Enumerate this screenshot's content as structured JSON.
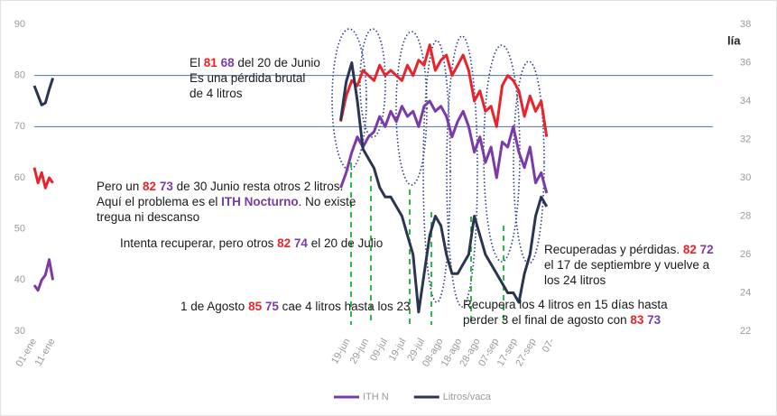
{
  "chart_data": {
    "type": "line",
    "corner_text": "lía",
    "x": [
      1,
      3,
      5,
      7,
      9,
      11,
      100,
      166,
      169,
      172,
      175,
      178,
      181,
      184,
      187,
      190,
      193,
      196,
      199,
      202,
      205,
      208,
      211,
      214,
      217,
      220,
      223,
      226,
      229,
      232,
      235,
      238,
      241,
      244,
      247,
      250,
      253,
      256,
      259,
      262,
      265,
      268,
      271,
      274,
      277
    ],
    "xlim": [
      1,
      280
    ],
    "xticks": [
      {
        "value": 1,
        "label": "01-ene"
      },
      {
        "value": 11,
        "label": "11-ene"
      },
      {
        "value": 170,
        "label": "19-jun"
      },
      {
        "value": 180,
        "label": "29-jun"
      },
      {
        "value": 190,
        "label": "09-jul"
      },
      {
        "value": 200,
        "label": "19-jul"
      },
      {
        "value": 210,
        "label": "29-jul"
      },
      {
        "value": 220,
        "label": "08-ago"
      },
      {
        "value": 230,
        "label": "18-ago"
      },
      {
        "value": 240,
        "label": "28-ago"
      },
      {
        "value": 250,
        "label": "07-sep"
      },
      {
        "value": 260,
        "label": "17-sep"
      },
      {
        "value": 270,
        "label": "27-sep"
      },
      {
        "value": 280,
        "label": "07-"
      }
    ],
    "ylim": [
      30,
      90
    ],
    "yticks": [
      30,
      40,
      50,
      60,
      70,
      80,
      90
    ],
    "y2lim": [
      22,
      38
    ],
    "y2ticks": [
      22,
      24,
      26,
      28,
      30,
      32,
      34,
      36,
      38
    ],
    "reference_lines": [
      80,
      70
    ],
    "reference_color": "#4a6fc4",
    "series": [
      {
        "color": "#e8242a",
        "values": [
          62,
          59,
          61,
          58,
          60,
          59,
          null,
          71,
          76,
          79,
          78,
          81,
          80,
          79,
          82,
          80,
          81,
          80,
          79,
          82,
          80,
          83,
          82,
          86,
          81,
          83,
          84,
          80,
          82,
          84,
          81,
          75,
          77,
          73,
          74,
          70,
          78,
          80,
          79,
          77,
          72,
          76,
          73,
          75,
          68
        ]
      },
      {
        "name": "ITH N",
        "color": "#7a3ba8",
        "values": [
          39,
          38,
          40,
          41,
          44,
          40,
          null,
          58,
          61,
          65,
          68,
          66,
          68,
          69,
          72,
          70,
          73,
          71,
          74,
          72,
          73,
          70,
          74,
          75,
          73,
          74,
          72,
          68,
          71,
          73,
          70,
          65,
          68,
          63,
          66,
          60,
          67,
          66,
          70,
          65,
          62,
          66,
          59,
          61,
          57
        ]
      },
      {
        "name": "Litros/vaca",
        "color": "#2a3552",
        "axis": "y2",
        "values": [
          34.8,
          34.3,
          33.8,
          33.9,
          34.6,
          35.2,
          null,
          33,
          35,
          36,
          34,
          31.5,
          31,
          30.5,
          29.5,
          29,
          29,
          28.5,
          28,
          27,
          26,
          23,
          25,
          27,
          28,
          27.5,
          26,
          25,
          25,
          25.5,
          26,
          28,
          27,
          26,
          25.5,
          25,
          24.5,
          24,
          24,
          23.5,
          25,
          26,
          28,
          29,
          28.5
        ]
      }
    ],
    "annotations": [
      {
        "lines": [
          [
            {
              "text": "El "
            },
            {
              "text": "81",
              "color": "#e8242a"
            },
            {
              "text": " "
            },
            {
              "text": "68",
              "color": "#7a3ba8"
            },
            {
              "text": " del 20 de Junio"
            }
          ],
          [
            {
              "text": "Es una pérdida brutal"
            }
          ],
          [
            {
              "text": "de 4 litros"
            }
          ]
        ]
      },
      {
        "lines": [
          [
            {
              "text": "Pero un "
            },
            {
              "text": "82",
              "color": "#e8242a"
            },
            {
              "text": " "
            },
            {
              "text": "73",
              "color": "#7a3ba8"
            },
            {
              "text": " de 30 Junio resta otros 2 litros."
            }
          ],
          [
            {
              "text": "Aquí el problema es el "
            },
            {
              "text": "ITH Nocturno",
              "color": "#7a3ba8"
            },
            {
              "text": ". No existe"
            }
          ],
          [
            {
              "text": "tregua ni descanso"
            }
          ]
        ]
      },
      {
        "lines": [
          [
            {
              "text": "Intenta recuperar, pero otros "
            },
            {
              "text": "82",
              "color": "#e8242a"
            },
            {
              "text": " "
            },
            {
              "text": "74",
              "color": "#7a3ba8"
            },
            {
              "text": " el 20 de Julio"
            }
          ]
        ]
      },
      {
        "lines": [
          [
            {
              "text": "1 de Agosto "
            },
            {
              "text": "85",
              "color": "#e8242a"
            },
            {
              "text": " "
            },
            {
              "text": "75",
              "color": "#7a3ba8"
            },
            {
              "text": " cae 4 litros hasta los 23"
            }
          ]
        ]
      },
      {
        "lines": [
          [
            {
              "text": "Recupera los 4 litros en 15 días hasta"
            }
          ],
          [
            {
              "text": "perder 3 el final de agosto con "
            },
            {
              "text": "83",
              "color": "#e8242a"
            },
            {
              "text": " "
            },
            {
              "text": "73",
              "color": "#7a3ba8"
            }
          ]
        ]
      },
      {
        "lines": [
          [
            {
              "text": "Recuperadas y pérdidas. "
            },
            {
              "text": "82",
              "color": "#e8242a"
            },
            {
              "text": " "
            },
            {
              "text": "72",
              "color": "#7a3ba8"
            }
          ],
          [
            {
              "text": "el 17 de septiembre y vuelve a"
            }
          ],
          [
            {
              "text": "los 24 litros"
            }
          ]
        ]
      }
    ]
  }
}
